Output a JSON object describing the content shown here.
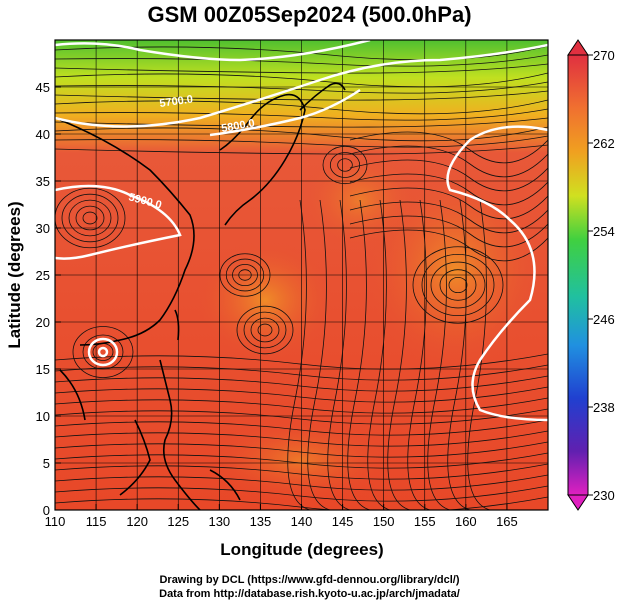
{
  "title": "GSM 00Z05Sep2024 (500.0hPa)",
  "xlabel": "Longitude (degrees)",
  "ylabel": "Latitude  (degrees)",
  "x_ticks": [
    "110",
    "115",
    "120",
    "125",
    "130",
    "135",
    "140",
    "145",
    "150",
    "155",
    "160",
    "165"
  ],
  "y_ticks": [
    "0",
    "5",
    "10",
    "15",
    "20",
    "25",
    "30",
    "35",
    "40",
    "45"
  ],
  "colorbar": {
    "ticks": [
      "270",
      "262",
      "254",
      "246",
      "238",
      "230"
    ],
    "colors": [
      "#e03040",
      "#f07030",
      "#f0a020",
      "#d0e020",
      "#40d040",
      "#20c0a0",
      "#2090e0",
      "#2040d0",
      "#6020b0",
      "#e020c0"
    ]
  },
  "contours": {
    "labels": [
      "5700.0",
      "5800.0",
      "5900.0"
    ]
  },
  "credits": {
    "line1": "Drawing by DCL (https://www.gfd-dennou.org/library/dcl/)",
    "line2": "Data from http://database.rish.kyoto-u.ac.jp/arch/jmadata/"
  }
}
